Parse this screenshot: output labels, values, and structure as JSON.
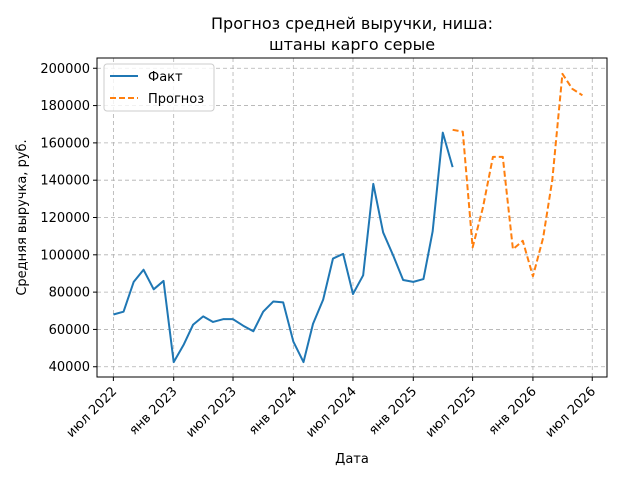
{
  "chart_data": {
    "type": "line",
    "title_lines": [
      "Прогноз средней выручки, ниша:",
      "штаны карго серые"
    ],
    "xlabel": "Дата",
    "ylabel": "Средняя выручка, руб.",
    "xlim": [
      "2022-05-12",
      "2026-08-15"
    ],
    "ylim": [
      34500,
      205500
    ],
    "x_ticks": [
      {
        "date": "2022-07-01",
        "label": "июл 2022"
      },
      {
        "date": "2023-01-01",
        "label": "янв 2023"
      },
      {
        "date": "2023-07-01",
        "label": "июл 2023"
      },
      {
        "date": "2024-01-01",
        "label": "янв 2024"
      },
      {
        "date": "2024-07-01",
        "label": "июл 2024"
      },
      {
        "date": "2025-01-01",
        "label": "янв 2025"
      },
      {
        "date": "2025-07-01",
        "label": "июл 2025"
      },
      {
        "date": "2026-01-01",
        "label": "янв 2026"
      },
      {
        "date": "2026-07-01",
        "label": "июл 2026"
      }
    ],
    "y_ticks": [
      {
        "value": 40000,
        "label": "40000"
      },
      {
        "value": 60000,
        "label": "60000"
      },
      {
        "value": 80000,
        "label": "80000"
      },
      {
        "value": 100000,
        "label": "100000"
      },
      {
        "value": 120000,
        "label": "120000"
      },
      {
        "value": 140000,
        "label": "140000"
      },
      {
        "value": 160000,
        "label": "160000"
      },
      {
        "value": 180000,
        "label": "180000"
      },
      {
        "value": 200000,
        "label": "200000"
      }
    ],
    "grid": true,
    "legend_position": "top-left",
    "series": [
      {
        "name": "Факт",
        "color": "#1f77b4",
        "dash": "solid",
        "x": [
          "2022-07-01",
          "2022-08-01",
          "2022-09-01",
          "2022-10-01",
          "2022-11-01",
          "2022-12-01",
          "2023-01-01",
          "2023-02-01",
          "2023-03-01",
          "2023-04-01",
          "2023-05-01",
          "2023-06-01",
          "2023-07-01",
          "2023-08-01",
          "2023-09-01",
          "2023-10-01",
          "2023-11-01",
          "2023-12-01",
          "2024-01-01",
          "2024-02-01",
          "2024-03-01",
          "2024-04-01",
          "2024-05-01",
          "2024-06-01",
          "2024-07-01",
          "2024-08-01",
          "2024-09-01",
          "2024-10-01",
          "2024-11-01",
          "2024-12-01",
          "2025-01-01",
          "2025-02-01",
          "2025-03-01",
          "2025-04-01",
          "2025-05-01"
        ],
        "y": [
          68000,
          69500,
          85500,
          92000,
          81500,
          86000,
          42500,
          52000,
          62500,
          67000,
          64000,
          65500,
          65500,
          62000,
          59000,
          69500,
          75000,
          74500,
          53500,
          42500,
          63000,
          76000,
          98000,
          100500,
          79000,
          89000,
          138000,
          112000,
          99500,
          86500,
          85500,
          87000,
          112500,
          165500,
          147000
        ]
      },
      {
        "name": "Прогноз",
        "color": "#ff7f0e",
        "dash": "dashed",
        "x": [
          "2025-05-01",
          "2025-06-01",
          "2025-07-01",
          "2025-08-01",
          "2025-09-01",
          "2025-10-01",
          "2025-11-01",
          "2025-12-01",
          "2026-01-01",
          "2026-02-01",
          "2026-03-01",
          "2026-04-01",
          "2026-05-01",
          "2026-06-01"
        ],
        "y": [
          167000,
          166000,
          104000,
          125000,
          152500,
          152500,
          103000,
          107500,
          88500,
          109000,
          140000,
          197000,
          189000,
          185500
        ]
      }
    ]
  }
}
